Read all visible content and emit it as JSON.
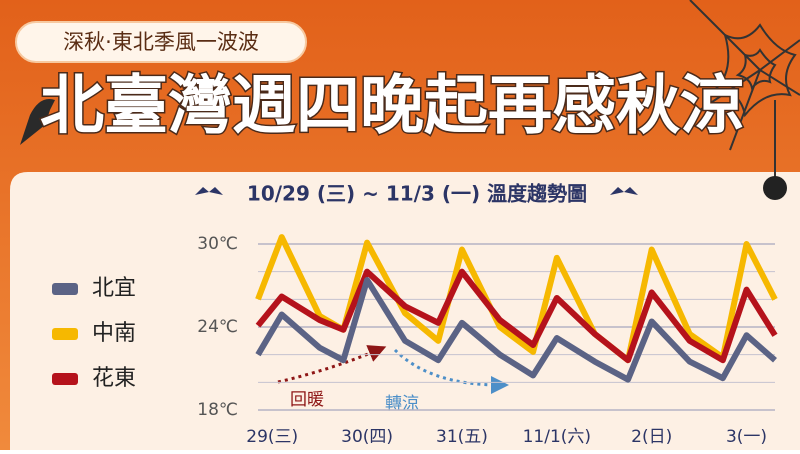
{
  "tag": "深秋·東北季風一波波",
  "headline": "北臺灣週四晚起再感秋涼",
  "chart_data": {
    "type": "line",
    "title": "10/29 (三) ~ 11/3 (一) 溫度趨勢圖",
    "x": [
      -0.15,
      0.1,
      0.5,
      0.75,
      1.0,
      1.4,
      1.75,
      2.0,
      2.4,
      2.75,
      3.0,
      3.4,
      3.75,
      4.0,
      4.4,
      4.75,
      5.0,
      5.3
    ],
    "xlim": [
      -0.15,
      5.3
    ],
    "xticks": [
      {
        "value": 0,
        "label": "29(三)"
      },
      {
        "value": 1,
        "label": "30(四)"
      },
      {
        "value": 2,
        "label": "31(五)"
      },
      {
        "value": 3,
        "label": "11/1(六)"
      },
      {
        "value": 4,
        "label": "2(日)"
      },
      {
        "value": 5,
        "label": "3(一)"
      }
    ],
    "ylim": [
      18,
      30
    ],
    "yticks": [
      {
        "value": 18,
        "label": "18℃"
      },
      {
        "value": 24,
        "label": "24℃"
      },
      {
        "value": 30,
        "label": "30℃"
      }
    ],
    "yminor": [
      20,
      22,
      26,
      28
    ],
    "grid": true,
    "series": [
      {
        "name": "北宜",
        "color": "#5b6385",
        "values": [
          22,
          24.9,
          22.5,
          21.6,
          27.4,
          23,
          21.6,
          24.3,
          22,
          20.5,
          23.2,
          21.5,
          20.2,
          24.4,
          21.5,
          20.3,
          23.4,
          21.6
        ]
      },
      {
        "name": "中南",
        "color": "#f6b800",
        "values": [
          26,
          30.5,
          24.8,
          23.8,
          30.1,
          25,
          23,
          29.6,
          24,
          22.2,
          29,
          23.5,
          21.6,
          29.6,
          23.5,
          21.8,
          30,
          26
        ]
      },
      {
        "name": "花東",
        "color": "#b5121b",
        "values": [
          24.1,
          26.2,
          24.5,
          23.8,
          28,
          25.5,
          24.3,
          28,
          24.5,
          22.7,
          26.1,
          23.5,
          21.6,
          26.5,
          23,
          21.6,
          26.7,
          23.4
        ]
      }
    ],
    "annotations": [
      {
        "text": "回暖"
      },
      {
        "text": "轉涼"
      }
    ]
  }
}
